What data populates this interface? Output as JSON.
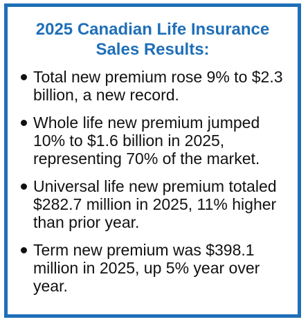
{
  "colors": {
    "border": "#1f6fb8",
    "title": "#1f6fb8",
    "text": "#111111"
  },
  "title": {
    "line1": "2025 Canadian Life Insurance",
    "line2": "Sales Results:"
  },
  "bullets": [
    "Total new premium rose 9% to $2.3 billion, a new record.",
    "Whole life new premium jumped 10% to $1.6 billion in 2025, representing 70% of the market.",
    "Universal life new premium totaled $282.7 million in 2025, 11% higher than prior year.",
    "Term new premium was $398.1 million in 2025, up 5% year over year."
  ]
}
